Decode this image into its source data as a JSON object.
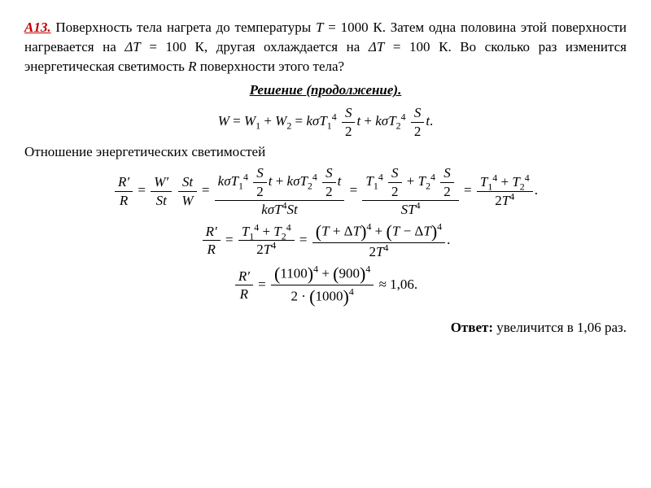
{
  "problem": {
    "label": "А13.",
    "text_part1": " Поверхность тела нагрета до температуры ",
    "T_sym": "T",
    "eq1": " = 1000 К. Затем одна половина этой поверхности нагревается на ",
    "dT_sym": "ΔT",
    "eq2": " = 100 К, другая охлаждается на ",
    "eq3": " = 100 К. Во сколько раз изменится энергетическая светимость ",
    "R_sym": "R",
    "text_part2": " поверхности этого тела?"
  },
  "solution": {
    "heading": "Решение (продолжение).",
    "intermediate_text": "Отношение энергетических светимостей"
  },
  "values": {
    "T1": "1100",
    "T2": "900",
    "T": "1000",
    "result": "1,06"
  },
  "answer": {
    "label": "Ответ:",
    "text": " увеличится в 1,06 раз."
  }
}
